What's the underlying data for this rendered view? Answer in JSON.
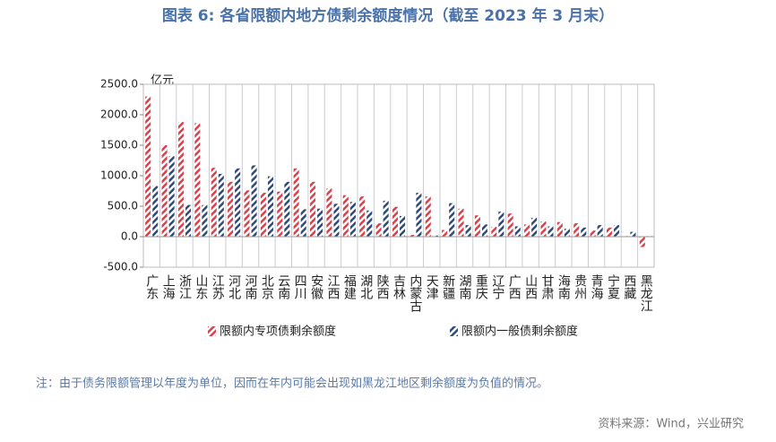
{
  "chart_data": {
    "type": "bar",
    "title": "图表 6:  各省限额内地方债剩余额度情况（截至 2023 年 3 月末）",
    "y_unit": "亿元",
    "categories": [
      "广东",
      "上海",
      "浙江",
      "山东",
      "江苏",
      "河北",
      "河南",
      "北京",
      "云南",
      "四川",
      "安徽",
      "江西",
      "福建",
      "湖北",
      "陕西",
      "吉林",
      "内蒙古",
      "天津",
      "新疆",
      "湖南",
      "重庆",
      "辽宁",
      "广西",
      "山西",
      "甘肃",
      "海南",
      "贵州",
      "青海",
      "宁夏",
      "西藏",
      "黑龙江"
    ],
    "series": [
      {
        "name": "限额内专项债剩余额度",
        "color": "#d9404a",
        "values": [
          2300,
          1500,
          1880,
          1860,
          1130,
          900,
          760,
          720,
          740,
          1120,
          900,
          790,
          680,
          660,
          220,
          490,
          30,
          660,
          110,
          460,
          350,
          160,
          380,
          200,
          250,
          240,
          220,
          100,
          150,
          10,
          -170
        ]
      },
      {
        "name": "限额内一般债剩余额度",
        "color": "#2e4a7a",
        "values": [
          830,
          1320,
          520,
          520,
          1030,
          1120,
          1170,
          990,
          900,
          450,
          460,
          540,
          570,
          430,
          590,
          340,
          720,
          20,
          550,
          190,
          200,
          410,
          170,
          310,
          170,
          130,
          150,
          190,
          190,
          80,
          10
        ]
      }
    ],
    "ylim": [
      -500,
      2500
    ],
    "yticks": [
      {
        "value": -500,
        "label": "-500.0"
      },
      {
        "value": 0,
        "label": "0.0"
      },
      {
        "value": 500,
        "label": "500.0"
      },
      {
        "value": 1000,
        "label": "1000.0"
      },
      {
        "value": 1500,
        "label": "1500.0"
      },
      {
        "value": 2000,
        "label": "2000.0"
      },
      {
        "value": 2500,
        "label": "2500.0"
      }
    ],
    "grid": true,
    "note": "注：由于债务限额管理以年度为单位，因而在年内可能会出现如黑龙江地区剩余额度为负值的情况。",
    "source": "资料来源：Wind，兴业研究"
  }
}
